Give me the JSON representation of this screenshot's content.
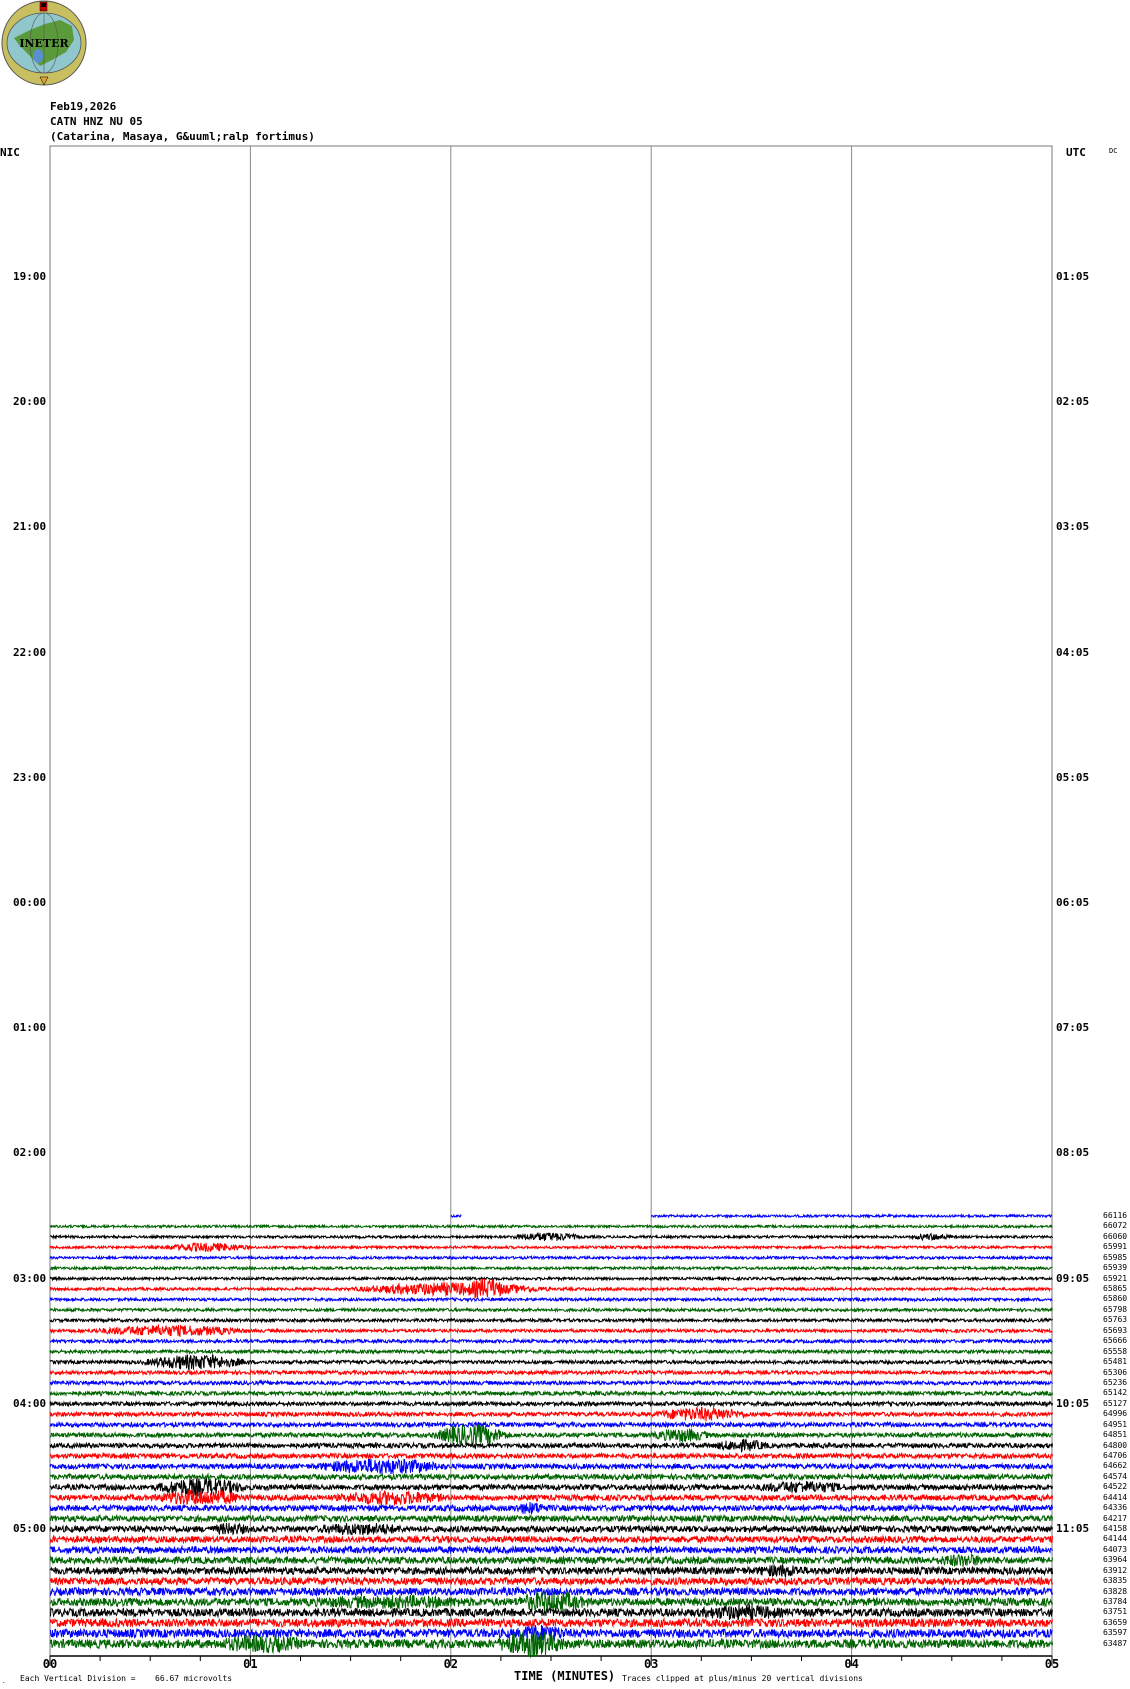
{
  "logo": {
    "text": "INETER"
  },
  "header": {
    "date": "Feb19,2026",
    "station": "CATN HNZ NU 05",
    "location": "(Catarina, Masaya, G&uuml;ralp fortimus)"
  },
  "left_axis": {
    "label": "NIC",
    "hours": [
      "19:00",
      "20:00",
      "21:00",
      "22:00",
      "23:00",
      "00:00",
      "01:00",
      "02:00",
      "03:00",
      "04:00",
      "05:00"
    ]
  },
  "right_axis": {
    "label": "UTC",
    "dc_label": "DC",
    "hours": [
      "01:05",
      "02:05",
      "03:05",
      "04:05",
      "05:05",
      "06:05",
      "07:05",
      "08:05",
      "09:05",
      "10:05",
      "11:05"
    ]
  },
  "trace_labels": [
    "66116",
    "66072",
    "66060",
    "65991",
    "65985",
    "65939",
    "65921",
    "65865",
    "65860",
    "65798",
    "65763",
    "65693",
    "65666",
    "65558",
    "65481",
    "65306",
    "65236",
    "65142",
    "65127",
    "64996",
    "64951",
    "64851",
    "64800",
    "64706",
    "64662",
    "64574",
    "64522",
    "64414",
    "64336",
    "64217",
    "64158",
    "64144",
    "64073",
    "63964",
    "63912",
    "63835",
    "63828",
    "63784",
    "63751",
    "63659",
    "63597",
    "63487"
  ],
  "trace_colors": [
    "#0000ff",
    "#006400",
    "#000000",
    "#ff0000"
  ],
  "x_axis": {
    "ticks": [
      "00",
      "01",
      "02",
      "03",
      "04",
      "05"
    ],
    "title": "TIME (MINUTES)"
  },
  "footer": {
    "scale_label": "Each Vertical Division =",
    "scale_value": "66.67 microvolts",
    "clip_note": "Traces clipped at plus/minus 20 vertical divisions"
  }
}
